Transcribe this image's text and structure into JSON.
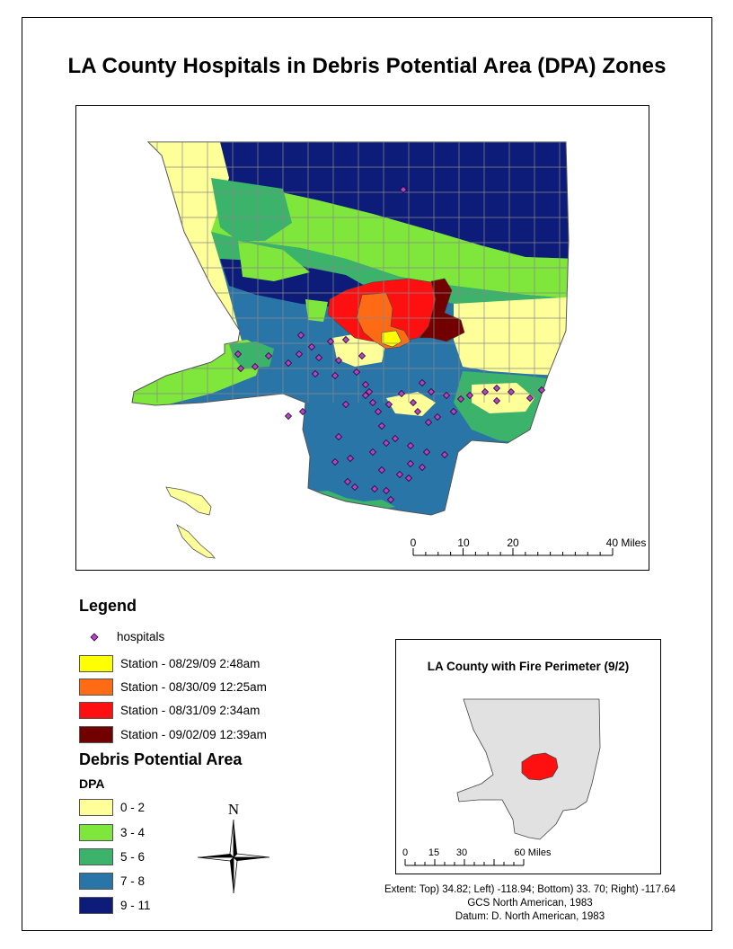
{
  "title": "LA County Hospitals in Debris Potential Area (DPA) Zones",
  "main_scale_bar": {
    "ticks": [
      "0",
      "10",
      "20",
      "40 Miles"
    ]
  },
  "legend": {
    "title": "Legend",
    "hospitals_label": "hospitals",
    "hospital_color": "#b146c2",
    "fire_stations": [
      {
        "label": "Station - 08/29/09 2:48am",
        "color": "#ffff00"
      },
      {
        "label": "Station - 08/30/09 12:25am",
        "color": "#ff6a14"
      },
      {
        "label": "Station - 08/31/09 2:34am",
        "color": "#ff1010"
      },
      {
        "label": "Station - 09/02/09 12:39am",
        "color": "#730000"
      }
    ],
    "dpa_title": "Debris Potential Area",
    "dpa_subtitle": "DPA",
    "dpa_classes": [
      {
        "label": "0 - 2",
        "color": "#ffff99"
      },
      {
        "label": "3 - 4",
        "color": "#7fe63c"
      },
      {
        "label": "5 - 6",
        "color": "#3cb36b"
      },
      {
        "label": "7 - 8",
        "color": "#2a75a8"
      },
      {
        "label": "9 - 11",
        "color": "#0d1c78"
      }
    ]
  },
  "north_arrow": {
    "label": "N"
  },
  "inset": {
    "title": "LA County with Fire Perimeter (9/2)",
    "scale_ticks": [
      "0",
      "15",
      "30",
      "60 Miles"
    ],
    "county_color": "#e1e1e1",
    "fire_color": "#ff1010"
  },
  "footer": {
    "extent": "Extent: Top) 34.82; Left) -118.94; Bottom) 33. 70; Right) -117.64",
    "gcs": "GCS North American, 1983",
    "datum": "Datum: D. North American, 1983"
  }
}
